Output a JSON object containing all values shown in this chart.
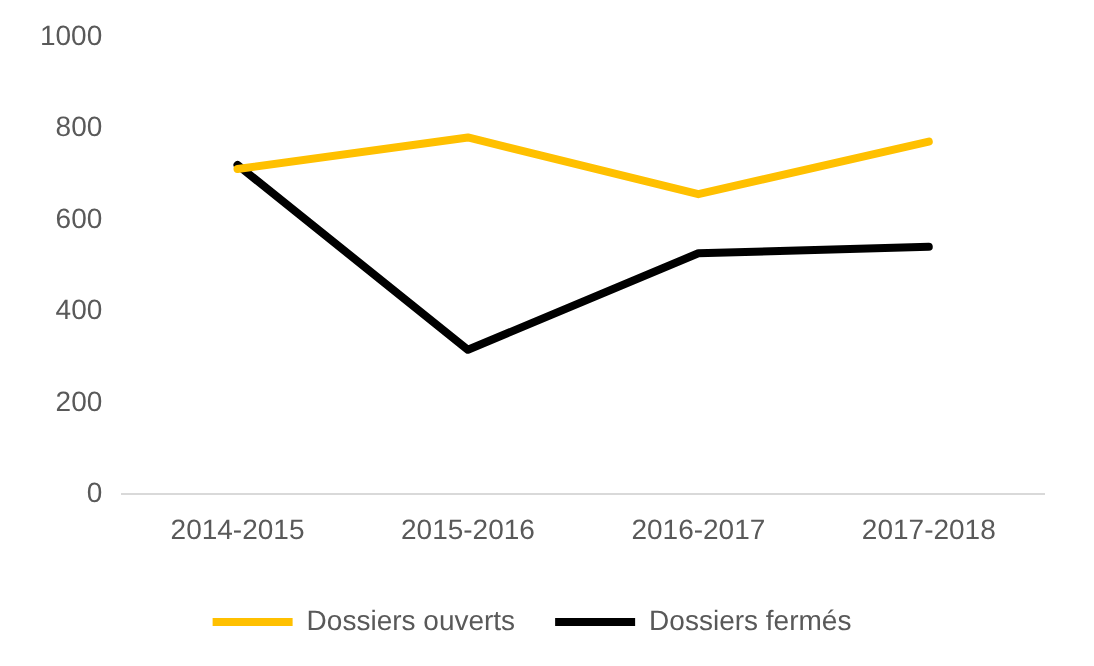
{
  "chart_data": {
    "type": "line",
    "categories": [
      "2014-2015",
      "2015-2016",
      "2016-2017",
      "2017-2018"
    ],
    "series": [
      {
        "name": "Dossiers ouverts",
        "color": "#ffc000",
        "values": [
          711,
          780,
          656,
          771
        ]
      },
      {
        "name": "Dossiers fermés",
        "color": "#000000",
        "values": [
          720,
          316,
          527,
          541
        ]
      }
    ],
    "ylim": [
      0,
      1000
    ],
    "yticks": [
      0,
      200,
      400,
      600,
      800,
      1000
    ],
    "grid": false,
    "legend": "bottom",
    "marker": "none",
    "line_style": "solid"
  }
}
